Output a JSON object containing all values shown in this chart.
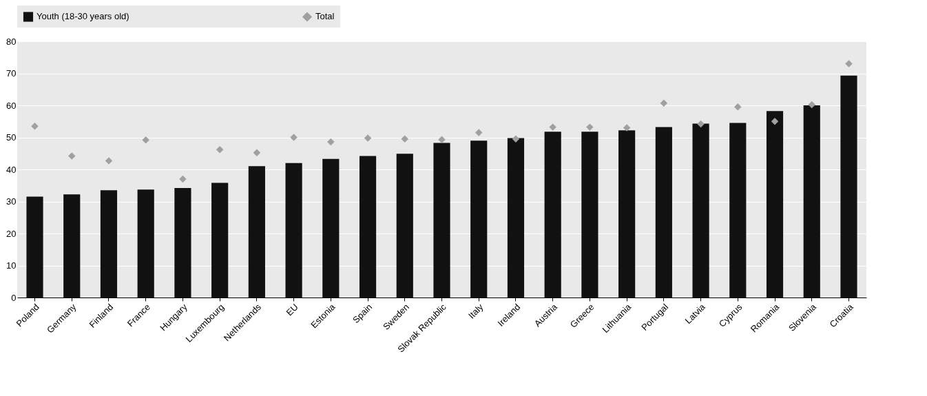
{
  "chart_data": {
    "type": "bar",
    "categories": [
      "Poland",
      "Germany",
      "Finland",
      "France",
      "Hungary",
      "Luxembourg",
      "Netherlands",
      "EU",
      "Estonia",
      "Spain",
      "Sweden",
      "Slovak Republic",
      "Italy",
      "Ireland",
      "Austria",
      "Greece",
      "Lithuania",
      "Portugal",
      "Latvia",
      "Cyprus",
      "Romania",
      "Slovenia",
      "Croatia"
    ],
    "series": [
      {
        "name": "Youth (18-30 years old)",
        "color": "#111111",
        "values": [
          31.5,
          32.2,
          33.5,
          33.7,
          34.2,
          35.8,
          41,
          42,
          43.3,
          44.2,
          44.9,
          48.3,
          49,
          49.8,
          51.8,
          51.8,
          52.2,
          53.2,
          54.3,
          54.5,
          58.2,
          60,
          69.3
        ]
      },
      {
        "name": "Total",
        "type": "scatter",
        "marker": "diamond",
        "color": "#a0a0a0",
        "values": [
          53.5,
          44.2,
          42.7,
          49.2,
          37,
          46.2,
          45.2,
          50,
          48.6,
          49.8,
          49.5,
          49.3,
          51.5,
          49.5,
          53.2,
          53.2,
          53,
          60.7,
          54.2,
          59.5,
          55,
          60.2,
          73
        ]
      }
    ],
    "ylim": [
      0,
      80
    ],
    "yticks": [
      0,
      10,
      20,
      30,
      40,
      50,
      60,
      70,
      80
    ],
    "grid": "y",
    "legend": "top"
  }
}
